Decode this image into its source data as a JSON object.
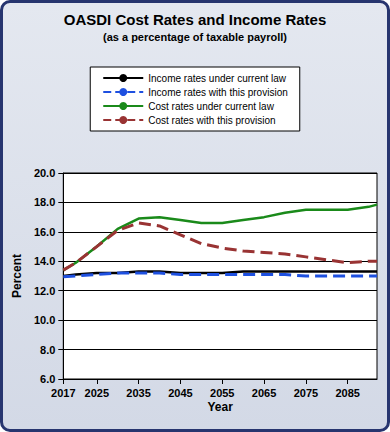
{
  "chart_data": {
    "type": "line",
    "title": "OASDI Cost Rates and Income Rates",
    "subtitle": "(as a percentage of taxable payroll)",
    "x_label": "Year",
    "y_label": "Percent",
    "x": [
      2017,
      2020,
      2025,
      2030,
      2035,
      2040,
      2045,
      2050,
      2055,
      2060,
      2065,
      2070,
      2075,
      2080,
      2085,
      2090,
      2092
    ],
    "series": [
      {
        "name": "Income rates under current law",
        "color": "#000000",
        "line_style": "solid",
        "values": [
          13.0,
          13.1,
          13.2,
          13.2,
          13.3,
          13.3,
          13.2,
          13.2,
          13.2,
          13.3,
          13.3,
          13.3,
          13.3,
          13.3,
          13.3,
          13.3,
          13.3
        ]
      },
      {
        "name": "Income rates with this provision",
        "color": "#1e50e0",
        "line_style": "dashed",
        "values": [
          12.95,
          13.0,
          13.1,
          13.2,
          13.2,
          13.2,
          13.1,
          13.1,
          13.1,
          13.1,
          13.1,
          13.1,
          13.0,
          13.0,
          13.0,
          13.0,
          13.0
        ]
      },
      {
        "name": "Cost rates under current law",
        "color": "#1a8a1a",
        "line_style": "solid",
        "values": [
          13.4,
          13.9,
          15.0,
          16.2,
          16.9,
          17.0,
          16.8,
          16.6,
          16.6,
          16.8,
          17.0,
          17.3,
          17.5,
          17.5,
          17.5,
          17.7,
          17.85
        ]
      },
      {
        "name": "Cost rates with this provision",
        "color": "#993333",
        "line_style": "dashed",
        "values": [
          13.4,
          13.9,
          15.0,
          16.1,
          16.6,
          16.4,
          15.8,
          15.2,
          14.9,
          14.7,
          14.6,
          14.5,
          14.3,
          14.1,
          13.9,
          14.0,
          14.0
        ]
      }
    ],
    "xlim": [
      2017,
      2092
    ],
    "xticks": [
      2017,
      2025,
      2035,
      2045,
      2055,
      2065,
      2075,
      2085
    ],
    "ylim": [
      6,
      20
    ],
    "yticks": [
      {
        "value": 6,
        "label": "6.0"
      },
      {
        "value": 8,
        "label": "8.0"
      },
      {
        "value": 10,
        "label": "10.0"
      },
      {
        "value": 12,
        "label": "12.0"
      },
      {
        "value": 14,
        "label": "14.0"
      },
      {
        "value": 16,
        "label": "16.0"
      },
      {
        "value": 18,
        "label": "18.0"
      },
      {
        "value": 20,
        "label": "20.0"
      }
    ],
    "grid": true,
    "legend": "top"
  }
}
